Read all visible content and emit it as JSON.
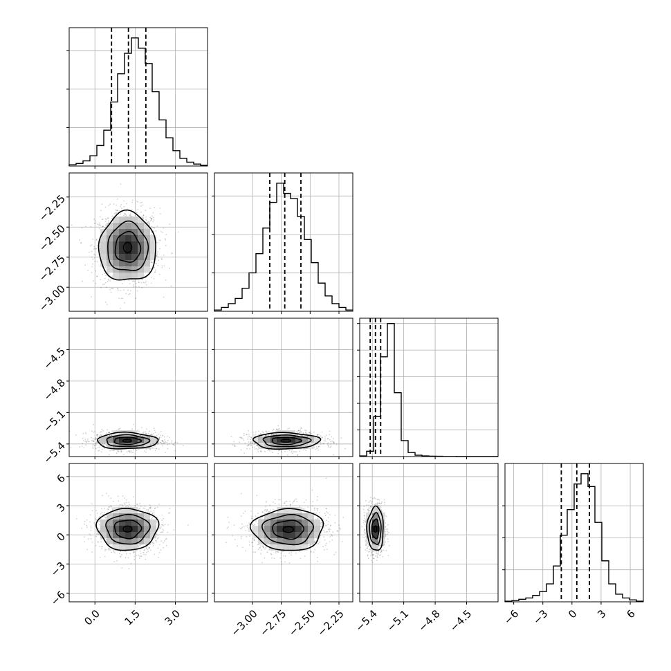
{
  "chart_data": {
    "type": "corner",
    "grid": true,
    "parameters": [
      {
        "hist": {
          "edges_min": -0.96,
          "edges_max": 4.2,
          "counts": [
            1,
            2,
            4,
            8,
            16,
            28,
            50,
            72,
            88,
            100,
            92,
            80,
            58,
            36,
            22,
            12,
            6,
            3,
            1.5,
            0.6
          ],
          "ymax": 108,
          "quantiles": [
            0.62,
            1.25,
            1.9
          ]
        },
        "xlim": [
          -0.96,
          4.2
        ],
        "yticks": [
          30,
          60,
          90
        ],
        "ticks": [
          0.0,
          1.5,
          3.0
        ],
        "tick_labels": [
          "0.0",
          "1.5",
          "3.0"
        ]
      },
      {
        "hist": {
          "edges_min": -3.33,
          "edges_max": -2.13,
          "counts": [
            1,
            3,
            6,
            10,
            18,
            30,
            45,
            65,
            85,
            100,
            92,
            88,
            74,
            56,
            38,
            22,
            12,
            6,
            3,
            1
          ],
          "ymax": 108,
          "quantiles": [
            -2.85,
            -2.72,
            -2.58
          ]
        },
        "xlim": [
          -3.33,
          -2.13
        ],
        "ylim": [
          -3.2,
          -2.05
        ],
        "yticks": [
          30,
          60,
          90
        ],
        "ticks": [
          -3.0,
          -2.75,
          -2.5,
          -2.25
        ],
        "tick_labels": [
          "−3.00",
          "−2.75",
          "−2.50",
          "−2.25"
        ]
      },
      {
        "hist": {
          "edges_min": -5.52,
          "edges_max": -4.2,
          "counts": [
            0.5,
            4,
            30,
            75,
            100,
            48,
            12,
            3,
            1,
            0.5,
            0.3,
            0.2,
            0.1,
            0.1,
            0,
            0,
            0,
            0,
            0,
            0
          ],
          "ymax": 104,
          "quantiles": [
            -5.42,
            -5.37,
            -5.32
          ]
        },
        "xlim": [
          -5.52,
          -4.2
        ],
        "ylim": [
          -5.52,
          -4.2
        ],
        "yticks": [
          20,
          40,
          60,
          80,
          100
        ],
        "ticks": [
          -5.4,
          -5.1,
          -4.8,
          -4.5
        ],
        "tick_labels": [
          "−5.4",
          "−5.1",
          "−4.8",
          "−4.5"
        ]
      },
      {
        "hist": {
          "edges_min": -6.9,
          "edges_max": 7.35,
          "counts": [
            0.5,
            1,
            2,
            3,
            5,
            8,
            14,
            28,
            52,
            72,
            92,
            100,
            90,
            62,
            32,
            14,
            6,
            3,
            1.5,
            0.5
          ],
          "ymax": 108,
          "quantiles": [
            -1.1,
            0.5,
            1.8
          ]
        },
        "xlim": [
          -6.9,
          7.35
        ],
        "ylim": [
          -6.9,
          7.35
        ],
        "yticks": [
          25,
          50,
          75
        ],
        "ticks": [
          -6,
          -3,
          0,
          3,
          6
        ],
        "tick_labels": [
          "−6",
          "−3",
          "0",
          "3",
          "6"
        ]
      }
    ],
    "joint": [
      {
        "x_param": 0,
        "y_param": 1,
        "center": [
          1.22,
          -2.67
        ],
        "sd": [
          0.52,
          0.14
        ],
        "rho": 0.0,
        "contour_scale": [
          0.9,
          1.45,
          2.05
        ]
      },
      {
        "x_param": 0,
        "y_param": 2,
        "center": [
          1.2,
          -5.37
        ],
        "sd": [
          0.55,
          0.038
        ],
        "rho": 0.0,
        "contour_scale": [
          0.9,
          1.45,
          2.05
        ]
      },
      {
        "x_param": 1,
        "y_param": 2,
        "center": [
          -2.71,
          -5.37
        ],
        "sd": [
          0.14,
          0.038
        ],
        "rho": 0.0,
        "contour_scale": [
          0.9,
          1.45,
          2.05
        ]
      },
      {
        "x_param": 0,
        "y_param": 3,
        "center": [
          1.22,
          0.6
        ],
        "sd": [
          0.55,
          1.05
        ],
        "rho": 0.0,
        "contour_scale": [
          0.9,
          1.45,
          2.05
        ]
      },
      {
        "x_param": 1,
        "y_param": 3,
        "center": [
          -2.69,
          0.55
        ],
        "sd": [
          0.15,
          1.05
        ],
        "rho": 0.05,
        "contour_scale": [
          0.9,
          1.45,
          2.05
        ]
      },
      {
        "x_param": 2,
        "y_param": 3,
        "center": [
          -5.37,
          0.6
        ],
        "sd": [
          0.038,
          1.1
        ],
        "rho": 0.0,
        "contour_scale": [
          0.9,
          1.45,
          2.05
        ]
      }
    ]
  }
}
